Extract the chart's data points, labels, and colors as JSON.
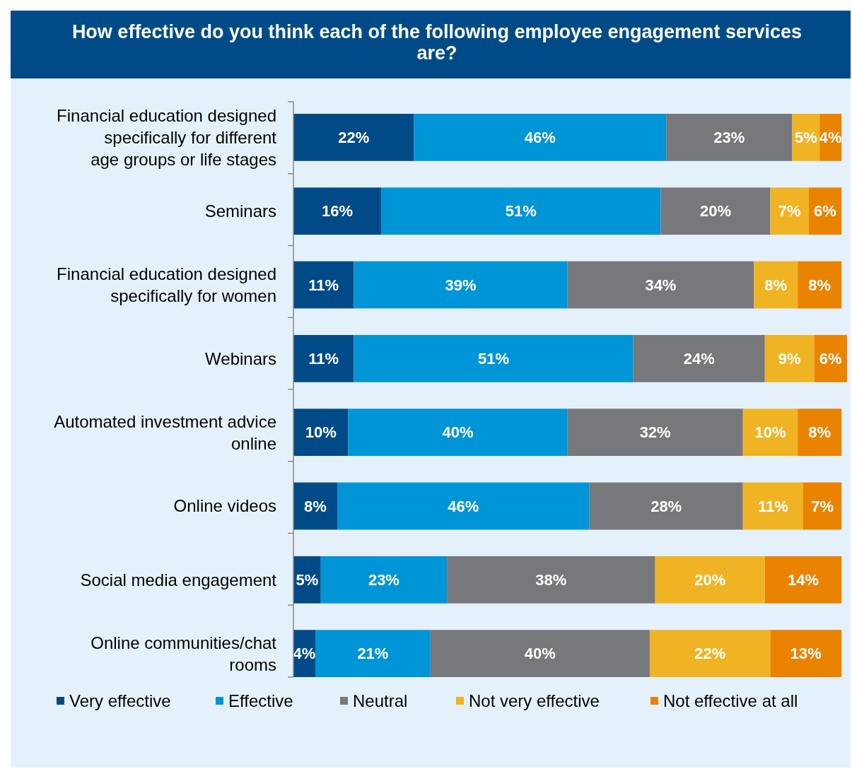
{
  "chart_data": {
    "type": "bar",
    "orientation": "horizontal",
    "stacked": true,
    "title": "How effective do you think each of the following employee engagement services are?",
    "categories": [
      "Financial education designed specifically for different age groups or life stages",
      "Seminars",
      "Financial education designed specifically for women",
      "Webinars",
      "Automated investment advice online",
      "Online videos",
      "Social media engagement",
      "Online communities/chat rooms"
    ],
    "series": [
      {
        "name": "Very effective",
        "color": "#004b87",
        "values": [
          22,
          16,
          11,
          11,
          10,
          8,
          5,
          4
        ],
        "value_labels": [
          "22%",
          "16%",
          "11%",
          "11%",
          "10%",
          "8%",
          "5%",
          "4%"
        ]
      },
      {
        "name": "Effective",
        "color": "#0095d6",
        "values": [
          46,
          51,
          39,
          51,
          40,
          46,
          23,
          21
        ],
        "value_labels": [
          "46%",
          "51%",
          "39%",
          "51%",
          "40%",
          "46%",
          "23%",
          "21%"
        ]
      },
      {
        "name": "Neutral",
        "color": "#76787b",
        "values": [
          23,
          20,
          34,
          24,
          32,
          28,
          38,
          40
        ],
        "value_labels": [
          "23%",
          "20%",
          "34%",
          "24%",
          "32%",
          "28%",
          "38%",
          "40%"
        ]
      },
      {
        "name": "Not very effective",
        "color": "#f0b323",
        "values": [
          5,
          7,
          8,
          9,
          10,
          11,
          20,
          22
        ],
        "value_labels": [
          "5%",
          "7%",
          "8%",
          "9%",
          "10%",
          "11%",
          "20%",
          "22%"
        ]
      },
      {
        "name": "Not effective at all",
        "color": "#e98300",
        "values": [
          4,
          6,
          8,
          6,
          8,
          7,
          14,
          13
        ],
        "value_labels": [
          "4%",
          "6%",
          "8%",
          "6%",
          "8%",
          "7%",
          "14%",
          "13%"
        ]
      }
    ],
    "legend": "bottom"
  }
}
